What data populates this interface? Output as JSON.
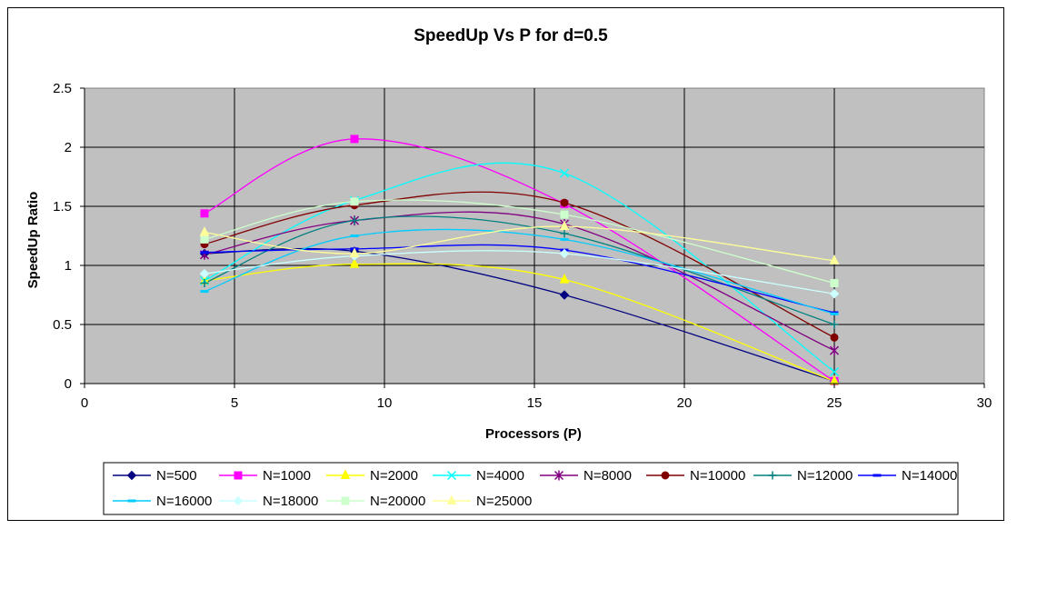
{
  "chart_data": {
    "type": "line",
    "title": "SpeedUp Vs P for d=0.5",
    "xlabel": "Processors (P)",
    "ylabel": "SpeedUp Ratio",
    "xlim": [
      0,
      30
    ],
    "ylim": [
      0,
      2.5
    ],
    "xticks": [
      "0",
      "5",
      "10",
      "15",
      "20",
      "25",
      "30"
    ],
    "yticks": [
      "0",
      "0.5",
      "1",
      "1.5",
      "2",
      "2.5"
    ],
    "grid": true,
    "plot_background": "#c0c0c0",
    "smoothed": true,
    "legend_position": "bottom",
    "x": [
      4,
      9,
      16,
      25
    ],
    "series": [
      {
        "name": "N=500",
        "color": "#000080",
        "marker": "diamond",
        "values": [
          1.1,
          1.12,
          0.75,
          0.02
        ]
      },
      {
        "name": "N=1000",
        "color": "#ff00ff",
        "marker": "square",
        "values": [
          1.44,
          2.07,
          1.52,
          0.02
        ]
      },
      {
        "name": "N=2000",
        "color": "#ffff00",
        "marker": "triangle",
        "values": [
          0.87,
          1.01,
          0.88,
          0.02
        ]
      },
      {
        "name": "N=4000",
        "color": "#00ffff",
        "marker": "x",
        "values": [
          0.87,
          1.55,
          1.78,
          0.1
        ]
      },
      {
        "name": "N=8000",
        "color": "#800080",
        "marker": "star",
        "values": [
          1.09,
          1.38,
          1.35,
          0.28
        ]
      },
      {
        "name": "N=10000",
        "color": "#800000",
        "marker": "circle",
        "values": [
          1.18,
          1.51,
          1.53,
          0.39
        ]
      },
      {
        "name": "N=12000",
        "color": "#008080",
        "marker": "plus",
        "values": [
          0.85,
          1.38,
          1.27,
          0.5
        ]
      },
      {
        "name": "N=14000",
        "color": "#0000ff",
        "marker": "dash",
        "values": [
          1.11,
          1.14,
          1.13,
          0.6
        ]
      },
      {
        "name": "N=16000",
        "color": "#00ccff",
        "marker": "dash",
        "values": [
          0.78,
          1.25,
          1.22,
          0.59
        ]
      },
      {
        "name": "N=18000",
        "color": "#ccffff",
        "marker": "diamond",
        "values": [
          0.93,
          1.08,
          1.1,
          0.76
        ]
      },
      {
        "name": "N=20000",
        "color": "#ccffcc",
        "marker": "square",
        "values": [
          1.22,
          1.54,
          1.43,
          0.85
        ]
      },
      {
        "name": "N=25000",
        "color": "#ffff99",
        "marker": "triangle",
        "values": [
          1.28,
          1.1,
          1.33,
          1.04
        ]
      }
    ]
  }
}
